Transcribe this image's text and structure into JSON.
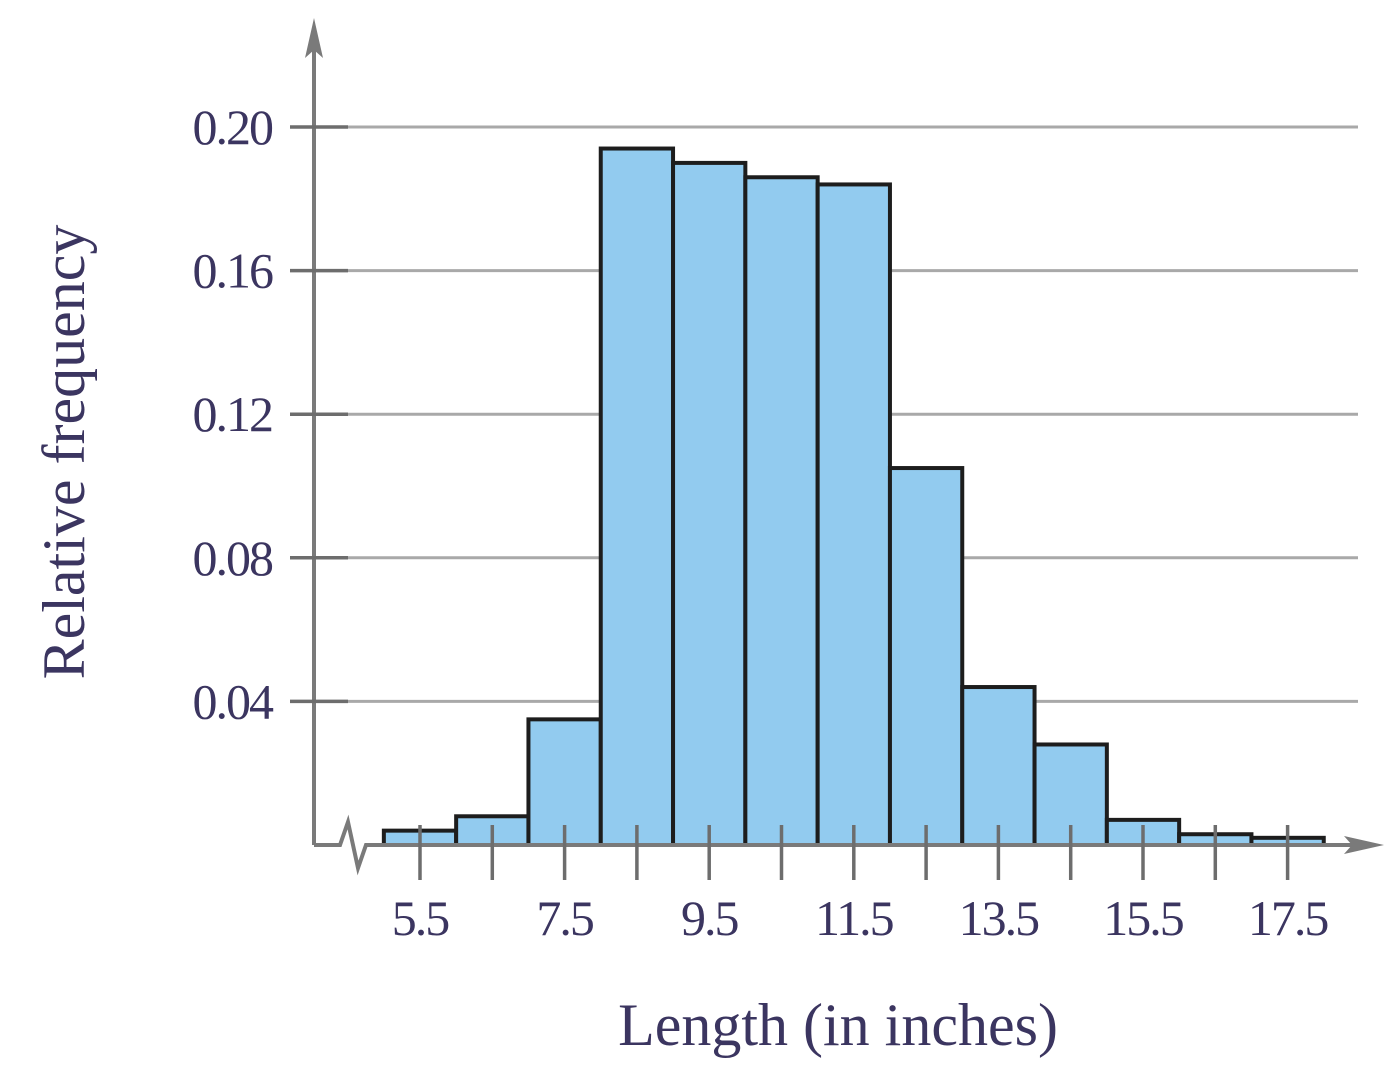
{
  "chart_data": {
    "type": "bar",
    "subtype": "histogram",
    "bar_color": "#92cbef",
    "bar_edge_color": "#1d1d1d",
    "grid": true,
    "xlabel": "Length (in inches)",
    "ylabel": "Relative frequency",
    "ylim": [
      0,
      0.2
    ],
    "yticks": [
      "0.04",
      "0.08",
      "0.12",
      "0.16",
      "0.20"
    ],
    "xticks": [
      "5.5",
      "7.5",
      "9.5",
      "11.5",
      "13.5",
      "15.5",
      "17.5"
    ],
    "bin_width": 1,
    "axis_break": true,
    "bins": [
      {
        "center": 5.5,
        "value": 0.004
      },
      {
        "center": 6.5,
        "value": 0.008
      },
      {
        "center": 7.5,
        "value": 0.035
      },
      {
        "center": 8.5,
        "value": 0.194
      },
      {
        "center": 9.5,
        "value": 0.19
      },
      {
        "center": 10.5,
        "value": 0.186
      },
      {
        "center": 11.5,
        "value": 0.184
      },
      {
        "center": 12.5,
        "value": 0.105
      },
      {
        "center": 13.5,
        "value": 0.044
      },
      {
        "center": 14.5,
        "value": 0.028
      },
      {
        "center": 15.5,
        "value": 0.007
      },
      {
        "center": 16.5,
        "value": 0.003
      },
      {
        "center": 17.5,
        "value": 0.002
      }
    ]
  }
}
